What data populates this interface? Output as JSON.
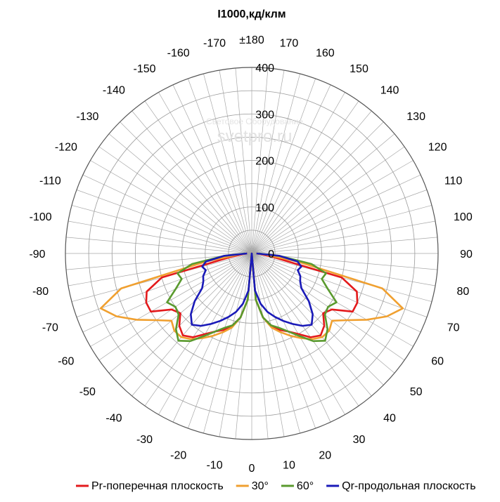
{
  "chart_data": {
    "type": "polar-line",
    "title": "I1000,кд/клм",
    "radial_axis": {
      "min": 0,
      "max": 400,
      "ticks": [
        0,
        100,
        200,
        300,
        400
      ]
    },
    "angle_labels": [
      "0",
      "10",
      "20",
      "30",
      "40",
      "50",
      "60",
      "70",
      "80",
      "90",
      "100",
      "110",
      "120",
      "130",
      "140",
      "150",
      "160",
      "170",
      "±180",
      "-170",
      "-160",
      "-150",
      "-140",
      "-130",
      "-120",
      "-110",
      "-100",
      "-90",
      "-80",
      "-70",
      "-60",
      "-50",
      "-40",
      "-30",
      "-20",
      "-10"
    ],
    "angle_direction": "0 at bottom, positive counter-clockwise (right side)",
    "grid": true,
    "legend_position": "bottom",
    "watermark": {
      "main": "svetpro.ru",
      "sub": "Световое Оборудование"
    },
    "series": [
      {
        "name": "Pr-поперечная плоскость",
        "color": "#e31a1c",
        "angles": [
          0,
          5,
          10,
          15,
          20,
          25,
          30,
          35,
          40,
          45,
          50,
          55,
          60,
          65,
          70,
          75,
          80,
          85,
          90
        ],
        "values": [
          0,
          100,
          140,
          160,
          175,
          185,
          200,
          220,
          230,
          220,
          200,
          210,
          250,
          250,
          240,
          200,
          50,
          20,
          10
        ],
        "mirror": true
      },
      {
        "name": "30°",
        "color": "#f0a030",
        "angles": [
          0,
          5,
          10,
          15,
          20,
          25,
          30,
          35,
          40,
          45,
          50,
          55,
          60,
          65,
          70,
          75,
          80,
          85,
          90
        ],
        "values": [
          0,
          100,
          140,
          165,
          180,
          195,
          210,
          225,
          235,
          235,
          225,
          250,
          285,
          320,
          345,
          290,
          100,
          30,
          10
        ],
        "mirror": true
      },
      {
        "name": "60°",
        "color": "#5a9a2e",
        "angles": [
          0,
          5,
          10,
          15,
          20,
          25,
          30,
          35,
          40,
          45,
          50,
          55,
          60,
          65,
          70,
          75,
          80,
          85,
          90
        ],
        "values": [
          0,
          100,
          140,
          160,
          170,
          185,
          205,
          230,
          245,
          230,
          205,
          200,
          210,
          180,
          160,
          165,
          130,
          60,
          15
        ],
        "mirror": true
      },
      {
        "name": "Qr-продольная плоскость",
        "color": "#1a1ab8",
        "angles": [
          0,
          5,
          10,
          15,
          20,
          25,
          30,
          35,
          40,
          45,
          50,
          55,
          60,
          65,
          70,
          75,
          80,
          85,
          90
        ],
        "values": [
          0,
          80,
          110,
          130,
          145,
          160,
          175,
          190,
          200,
          185,
          160,
          130,
          120,
          115,
          105,
          110,
          100,
          60,
          10
        ],
        "mirror": true
      }
    ]
  }
}
